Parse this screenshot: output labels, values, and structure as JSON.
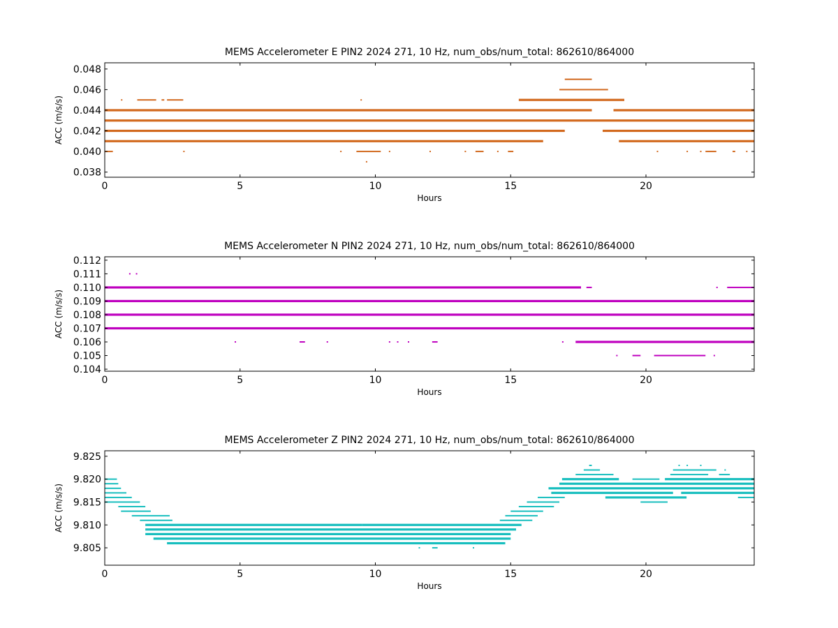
{
  "chart_data": [
    {
      "type": "scatter",
      "title": "MEMS Accelerometer E PIN2 2024 271, 10 Hz, num_obs/num_total: 862610/864000",
      "xlabel": "Hours",
      "ylabel": "ACC (m/s/s)",
      "xlim": [
        0,
        24
      ],
      "ylim": [
        0.0375,
        0.0486
      ],
      "xticks": [
        0,
        5,
        10,
        15,
        20
      ],
      "yticks": [
        0.038,
        0.04,
        0.042,
        0.044,
        0.046,
        0.048
      ],
      "ytick_decimals": 3,
      "color": "#d2691e",
      "grid": false,
      "series": [
        {
          "y": 0.044,
          "segments": [
            [
              0,
              18.0
            ],
            [
              18.8,
              24
            ]
          ]
        },
        {
          "y": 0.043,
          "segments": [
            [
              0,
              24
            ]
          ]
        },
        {
          "y": 0.042,
          "segments": [
            [
              0,
              17.0
            ],
            [
              18.4,
              24
            ]
          ]
        },
        {
          "y": 0.041,
          "segments": [
            [
              0,
              16.2
            ],
            [
              19.0,
              24
            ]
          ]
        },
        {
          "y": 0.045,
          "segments": [
            [
              0.6,
              0.65
            ],
            [
              1.2,
              1.9
            ],
            [
              2.1,
              2.2
            ],
            [
              2.3,
              2.9
            ],
            [
              9.45,
              9.5
            ],
            [
              15.3,
              19.2
            ]
          ]
        },
        {
          "y": 0.046,
          "segments": [
            [
              16.8,
              18.6
            ]
          ]
        },
        {
          "y": 0.047,
          "segments": [
            [
              17.0,
              18.0
            ]
          ]
        },
        {
          "y": 0.04,
          "segments": [
            [
              0,
              0.3
            ],
            [
              2.9,
              2.95
            ],
            [
              8.7,
              8.75
            ],
            [
              9.3,
              10.2
            ],
            [
              10.5,
              10.55
            ],
            [
              12.0,
              12.05
            ],
            [
              13.3,
              13.35
            ],
            [
              13.7,
              14.0
            ],
            [
              14.5,
              14.55
            ],
            [
              14.9,
              15.1
            ],
            [
              20.4,
              20.45
            ],
            [
              21.5,
              21.55
            ],
            [
              22.0,
              22.05
            ],
            [
              22.2,
              22.6
            ],
            [
              23.2,
              23.3
            ],
            [
              23.7,
              23.75
            ]
          ]
        },
        {
          "y": 0.039,
          "segments": [
            [
              9.65,
              9.7
            ]
          ]
        }
      ]
    },
    {
      "type": "scatter",
      "title": "MEMS Accelerometer N PIN2 2024 271, 10 Hz, num_obs/num_total: 862610/864000",
      "xlabel": "Hours",
      "ylabel": "ACC (m/s/s)",
      "xlim": [
        0,
        24
      ],
      "ylim": [
        0.10385,
        0.11225
      ],
      "xticks": [
        0,
        5,
        10,
        15,
        20
      ],
      "yticks": [
        0.104,
        0.105,
        0.106,
        0.107,
        0.108,
        0.109,
        0.11,
        0.111,
        0.112
      ],
      "ytick_decimals": 3,
      "color": "#bf00bf",
      "grid": false,
      "series": [
        {
          "y": 0.11,
          "segments": [
            [
              0,
              17.6
            ],
            [
              17.8,
              18.0
            ],
            [
              22.6,
              22.65
            ],
            [
              23.0,
              24
            ]
          ]
        },
        {
          "y": 0.109,
          "segments": [
            [
              0,
              24
            ]
          ]
        },
        {
          "y": 0.108,
          "segments": [
            [
              0,
              24
            ]
          ]
        },
        {
          "y": 0.107,
          "segments": [
            [
              0,
              24
            ]
          ]
        },
        {
          "y": 0.106,
          "segments": [
            [
              4.8,
              4.85
            ],
            [
              7.2,
              7.4
            ],
            [
              8.2,
              8.25
            ],
            [
              10.5,
              10.55
            ],
            [
              10.8,
              10.85
            ],
            [
              11.2,
              11.25
            ],
            [
              12.1,
              12.3
            ],
            [
              16.9,
              16.95
            ],
            [
              17.4,
              24
            ]
          ]
        },
        {
          "y": 0.105,
          "segments": [
            [
              18.9,
              18.95
            ],
            [
              19.5,
              19.8
            ],
            [
              20.3,
              22.2
            ],
            [
              22.5,
              22.55
            ]
          ]
        },
        {
          "y": 0.111,
          "segments": [
            [
              0.9,
              0.95
            ],
            [
              1.15,
              1.2
            ]
          ]
        }
      ]
    },
    {
      "type": "scatter",
      "title": "MEMS Accelerometer Z PIN2 2024 271, 10 Hz, num_obs/num_total: 862610/864000",
      "xlabel": "Hours",
      "ylabel": "ACC (m/s/s)",
      "xlim": [
        0,
        24
      ],
      "ylim": [
        9.8012,
        9.8262
      ],
      "xticks": [
        0,
        5,
        10,
        15,
        20
      ],
      "yticks": [
        9.805,
        9.81,
        9.815,
        9.82,
        9.825
      ],
      "ytick_decimals": 3,
      "color": "#17bebe",
      "grid": false,
      "series": [
        {
          "y": 9.82,
          "segments": [
            [
              0,
              0.45
            ],
            [
              16.9,
              19.0
            ],
            [
              19.5,
              20.5
            ],
            [
              20.7,
              24
            ]
          ]
        },
        {
          "y": 9.819,
          "segments": [
            [
              0,
              0.5
            ],
            [
              16.8,
              24
            ]
          ]
        },
        {
          "y": 9.818,
          "segments": [
            [
              0,
              0.6
            ],
            [
              16.4,
              24
            ]
          ]
        },
        {
          "y": 9.817,
          "segments": [
            [
              0,
              0.8
            ],
            [
              16.5,
              21.0
            ],
            [
              21.3,
              24
            ]
          ]
        },
        {
          "y": 9.816,
          "segments": [
            [
              0,
              1.0
            ],
            [
              16.0,
              17.0
            ],
            [
              18.5,
              21.5
            ],
            [
              23.4,
              24
            ]
          ]
        },
        {
          "y": 9.815,
          "segments": [
            [
              0,
              1.3
            ],
            [
              15.6,
              16.8
            ],
            [
              19.8,
              20.8
            ]
          ]
        },
        {
          "y": 9.814,
          "segments": [
            [
              0.5,
              1.5
            ],
            [
              15.3,
              16.6
            ]
          ]
        },
        {
          "y": 9.813,
          "segments": [
            [
              0.6,
              1.7
            ],
            [
              15.0,
              16.2
            ]
          ]
        },
        {
          "y": 9.812,
          "segments": [
            [
              1.0,
              2.4
            ],
            [
              14.8,
              16.0
            ]
          ]
        },
        {
          "y": 9.811,
          "segments": [
            [
              1.3,
              2.5
            ],
            [
              14.6,
              15.8
            ]
          ]
        },
        {
          "y": 9.81,
          "segments": [
            [
              1.5,
              9.5
            ],
            [
              9.5,
              15.4
            ]
          ]
        },
        {
          "y": 9.809,
          "segments": [
            [
              1.5,
              15.2
            ]
          ]
        },
        {
          "y": 9.808,
          "segments": [
            [
              1.5,
              15.0
            ]
          ]
        },
        {
          "y": 9.807,
          "segments": [
            [
              1.8,
              15.0
            ]
          ]
        },
        {
          "y": 9.806,
          "segments": [
            [
              2.3,
              14.8
            ]
          ]
        },
        {
          "y": 9.805,
          "segments": [
            [
              11.6,
              11.65
            ],
            [
              12.1,
              12.3
            ],
            [
              13.6,
              13.65
            ]
          ]
        },
        {
          "y": 9.821,
          "segments": [
            [
              17.4,
              18.8
            ],
            [
              20.9,
              22.3
            ],
            [
              22.7,
              23.1
            ]
          ]
        },
        {
          "y": 9.822,
          "segments": [
            [
              17.7,
              18.3
            ],
            [
              21.0,
              22.6
            ],
            [
              22.9,
              22.95
            ]
          ]
        },
        {
          "y": 9.823,
          "segments": [
            [
              17.9,
              18.0
            ],
            [
              21.2,
              21.25
            ],
            [
              21.5,
              21.55
            ],
            [
              22.0,
              22.05
            ]
          ]
        }
      ]
    }
  ]
}
